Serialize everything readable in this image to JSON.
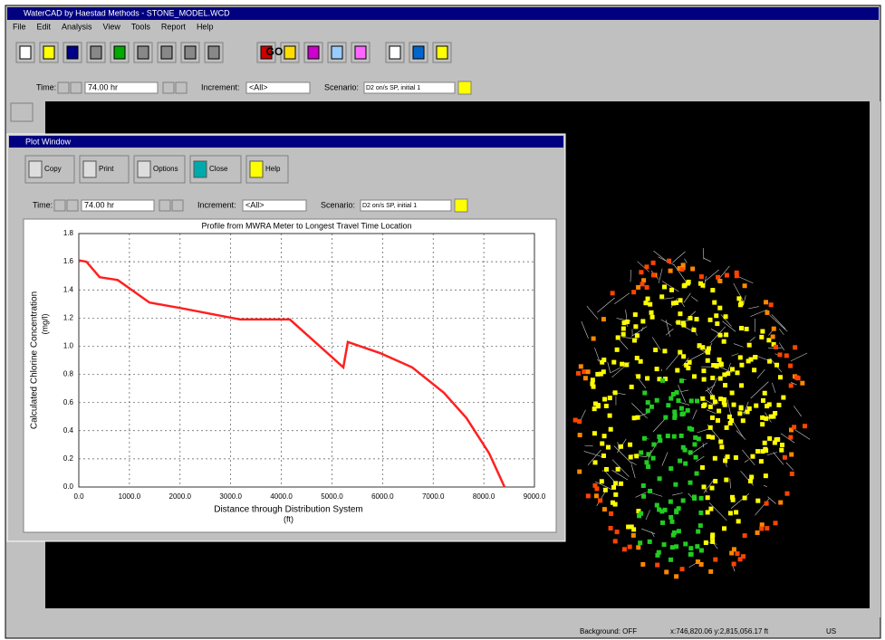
{
  "app": {
    "title": "WaterCAD by Haestad Methods - STONE_MODEL.WCD",
    "menu": [
      "File",
      "Edit",
      "Analysis",
      "View",
      "Tools",
      "Report",
      "Help"
    ],
    "go_button": "GO",
    "time_bar": {
      "time_label": "Time:",
      "time": "74.00 hr",
      "increment_label": "Increment:",
      "increment": "<All>",
      "scenario_label": "Scenario:",
      "scenario": "D2 on/s SP, initial 1"
    },
    "status_bar": [
      "Background: OFF",
      "x:746,820.06 y:2,815,056.17 ft",
      "US"
    ]
  },
  "plot_window": {
    "title": "Plot Window",
    "buttons": [
      "Copy",
      "Print",
      "Options",
      "Close",
      "Help"
    ],
    "time_bar": {
      "time_label": "Time:",
      "time": "74.00 hr",
      "increment_label": "Increment:",
      "increment": "<All>",
      "scenario_label": "Scenario:",
      "scenario": "D2 on/s SP, initial 1"
    }
  },
  "chart_data": {
    "type": "line",
    "title": "Profile from MWRA Meter to Longest Travel Time Location",
    "ylabel": "Calculated Chlorine Concentration",
    "yunit": "(mg/l)",
    "xlabel": "Distance through Distribution System",
    "xunit": "(ft)",
    "x": [
      0,
      150,
      412,
      769,
      1396,
      2022,
      3185,
      4169,
      5225,
      5314,
      5958,
      6584,
      7210,
      7657,
      8105,
      8410
    ],
    "values": [
      1.61,
      1.6,
      1.49,
      1.47,
      1.31,
      1.27,
      1.19,
      1.19,
      0.85,
      1.03,
      0.95,
      0.85,
      0.67,
      0.49,
      0.24,
      0.0
    ],
    "color": "#ff2020",
    "xlim": [
      0,
      9000
    ],
    "xticks": [
      {
        "value": 0,
        "label": "0.0"
      },
      {
        "value": 1000,
        "label": "1000.0"
      },
      {
        "value": 2000,
        "label": "2000.0"
      },
      {
        "value": 3000,
        "label": "3000.0"
      },
      {
        "value": 4000,
        "label": "4000.0"
      },
      {
        "value": 5000,
        "label": "5000.0"
      },
      {
        "value": 6000,
        "label": "6000.0"
      },
      {
        "value": 7000,
        "label": "7000.0"
      },
      {
        "value": 8000,
        "label": "8000.0"
      },
      {
        "value": 9000,
        "label": "9000.0"
      }
    ],
    "ylim": [
      0,
      1.8
    ],
    "yticks": [
      {
        "value": 0,
        "label": "0.0"
      },
      0.2,
      0.4,
      0.6,
      0.8,
      {
        "value": 1,
        "label": "1.0"
      },
      1.2,
      1.4,
      1.6,
      1.8
    ],
    "grid": true
  }
}
